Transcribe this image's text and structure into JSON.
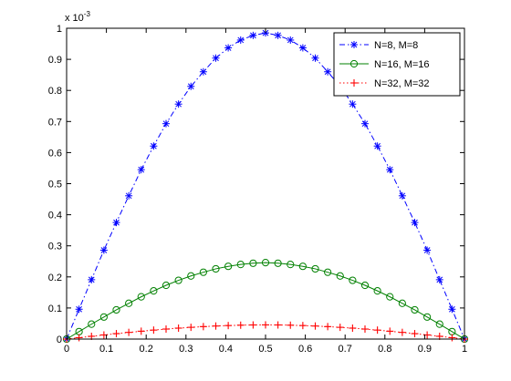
{
  "chart_data": {
    "type": "line",
    "title": "",
    "xlabel": "",
    "ylabel": "",
    "xlim": [
      0,
      1
    ],
    "ylim": [
      0,
      1
    ],
    "y_multiplier_label": "x 10",
    "y_multiplier_exponent": "-3",
    "x_ticks": [
      0,
      0.1,
      0.2,
      0.3,
      0.4,
      0.5,
      0.6,
      0.7,
      0.8,
      0.9,
      1
    ],
    "x_tick_labels": [
      "0",
      "0.1",
      "0.2",
      "0.3",
      "0.4",
      "0.5",
      "0.6",
      "0.7",
      "0.8",
      "0.9",
      "1"
    ],
    "y_ticks": [
      0,
      0.1,
      0.2,
      0.3,
      0.4,
      0.5,
      0.6,
      0.7,
      0.8,
      0.9,
      1
    ],
    "y_tick_labels": [
      "0",
      "0.1",
      "0.2",
      "0.3",
      "0.4",
      "0.5",
      "0.6",
      "0.7",
      "0.8",
      "0.9",
      "1"
    ],
    "grid": false,
    "legend_position": "top-right",
    "series": [
      {
        "name": "N=8, M=8",
        "color": "#0000ff",
        "line_style": "dash-dot",
        "marker": "asterisk",
        "x": [
          0,
          0.03125,
          0.0625,
          0.09375,
          0.125,
          0.15625,
          0.1875,
          0.21875,
          0.25,
          0.28125,
          0.3125,
          0.34375,
          0.375,
          0.40625,
          0.4375,
          0.46875,
          0.5,
          0.53125,
          0.5625,
          0.59375,
          0.625,
          0.65625,
          0.6875,
          0.71875,
          0.75,
          0.78125,
          0.8125,
          0.84375,
          0.875,
          0.90625,
          0.9375,
          0.96875,
          1
        ],
        "values": [
          0,
          0.096,
          0.191,
          0.286,
          0.375,
          0.461,
          0.545,
          0.621,
          0.693,
          0.756,
          0.813,
          0.86,
          0.904,
          0.937,
          0.962,
          0.977,
          0.985,
          0.977,
          0.962,
          0.937,
          0.904,
          0.86,
          0.813,
          0.756,
          0.693,
          0.621,
          0.545,
          0.461,
          0.375,
          0.286,
          0.191,
          0.096,
          0
        ]
      },
      {
        "name": "N=16, M=16",
        "color": "#008000",
        "line_style": "solid",
        "marker": "circle",
        "x": [
          0,
          0.03125,
          0.0625,
          0.09375,
          0.125,
          0.15625,
          0.1875,
          0.21875,
          0.25,
          0.28125,
          0.3125,
          0.34375,
          0.375,
          0.40625,
          0.4375,
          0.46875,
          0.5,
          0.53125,
          0.5625,
          0.59375,
          0.625,
          0.65625,
          0.6875,
          0.71875,
          0.75,
          0.78125,
          0.8125,
          0.84375,
          0.875,
          0.90625,
          0.9375,
          0.96875,
          1
        ],
        "values": [
          0,
          0.024,
          0.048,
          0.071,
          0.094,
          0.115,
          0.136,
          0.155,
          0.173,
          0.189,
          0.203,
          0.215,
          0.226,
          0.234,
          0.24,
          0.244,
          0.246,
          0.244,
          0.24,
          0.234,
          0.226,
          0.215,
          0.203,
          0.189,
          0.173,
          0.155,
          0.136,
          0.115,
          0.094,
          0.071,
          0.048,
          0.024,
          0
        ]
      },
      {
        "name": "N=32, M=32",
        "color": "#ff0000",
        "line_style": "dotted",
        "marker": "plus",
        "x": [
          0,
          0.03125,
          0.0625,
          0.09375,
          0.125,
          0.15625,
          0.1875,
          0.21875,
          0.25,
          0.28125,
          0.3125,
          0.34375,
          0.375,
          0.40625,
          0.4375,
          0.46875,
          0.5,
          0.53125,
          0.5625,
          0.59375,
          0.625,
          0.65625,
          0.6875,
          0.71875,
          0.75,
          0.78125,
          0.8125,
          0.84375,
          0.875,
          0.90625,
          0.9375,
          0.96875,
          1
        ],
        "values": [
          0,
          0.0045,
          0.0089,
          0.0132,
          0.0175,
          0.0215,
          0.0253,
          0.0289,
          0.0322,
          0.0352,
          0.0378,
          0.0401,
          0.042,
          0.0435,
          0.0447,
          0.0454,
          0.0456,
          0.0454,
          0.0447,
          0.0435,
          0.042,
          0.0401,
          0.0378,
          0.0352,
          0.0322,
          0.0289,
          0.0253,
          0.0215,
          0.0175,
          0.0132,
          0.0089,
          0.0045,
          0
        ]
      }
    ]
  }
}
